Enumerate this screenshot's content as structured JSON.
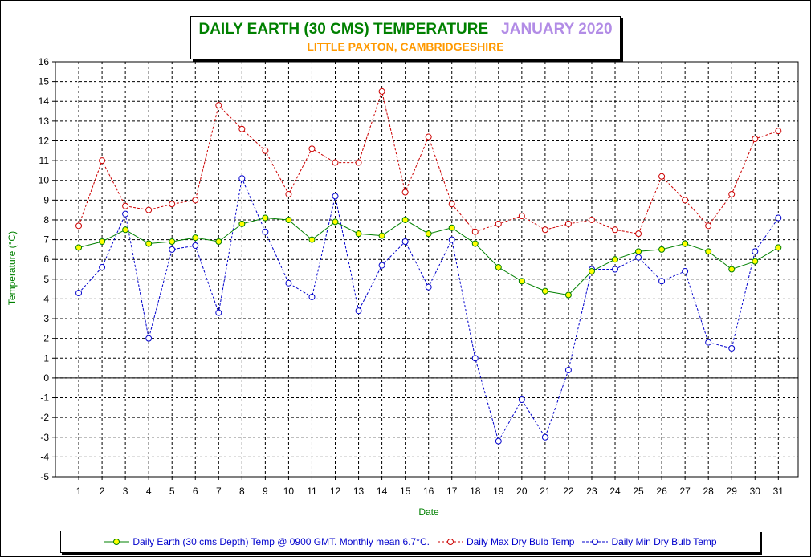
{
  "chart_data": {
    "type": "line",
    "title": "DAILY EARTH (30 CMS) TEMPERATURE",
    "title_period": "JANUARY 2020",
    "subtitle": "LITTLE PAXTON, CAMBRIDGESHIRE",
    "xlabel": "Date",
    "ylabel": "Temperature (°C)",
    "x": [
      1,
      2,
      3,
      4,
      5,
      6,
      7,
      8,
      9,
      10,
      11,
      12,
      13,
      14,
      15,
      16,
      17,
      18,
      19,
      20,
      21,
      22,
      23,
      24,
      25,
      26,
      27,
      28,
      29,
      30,
      31
    ],
    "ylim": [
      -5,
      16
    ],
    "yticks": [
      -5,
      -4,
      -3,
      -2,
      -1,
      0,
      1,
      2,
      3,
      4,
      5,
      6,
      7,
      8,
      9,
      10,
      11,
      12,
      13,
      14,
      15,
      16
    ],
    "grid": true,
    "legend_position": "bottom",
    "series": [
      {
        "name": "Daily Earth (30 cms Depth) Temp @ 0900 GMT. Monthly mean 6.7°C.",
        "color": "#008000",
        "marker_color": "#ffff00",
        "line_style": "solid",
        "values": [
          6.6,
          6.9,
          7.5,
          6.8,
          6.9,
          7.1,
          6.9,
          7.8,
          8.1,
          8.0,
          7.0,
          7.9,
          7.3,
          7.2,
          8.0,
          7.3,
          7.6,
          6.8,
          5.6,
          4.9,
          4.4,
          4.2,
          5.4,
          6.0,
          6.4,
          6.5,
          6.8,
          6.4,
          5.5,
          5.9,
          6.6
        ]
      },
      {
        "name": "Daily Max Dry Bulb Temp",
        "color": "#cc0000",
        "line_style": "dashed",
        "values": [
          7.7,
          11.0,
          8.7,
          8.5,
          8.8,
          9.0,
          13.8,
          12.6,
          11.5,
          9.3,
          11.6,
          10.9,
          10.9,
          14.5,
          9.4,
          12.2,
          8.8,
          7.4,
          7.8,
          8.2,
          7.5,
          7.8,
          8.0,
          7.5,
          7.3,
          10.2,
          9.0,
          7.7,
          9.3,
          12.1,
          12.5
        ]
      },
      {
        "name": "Daily Min Dry Bulb Temp",
        "color": "#0000cc",
        "line_style": "dashed",
        "values": [
          4.3,
          5.6,
          8.3,
          2.0,
          6.5,
          6.7,
          3.3,
          10.1,
          7.4,
          4.8,
          4.1,
          9.2,
          3.4,
          5.7,
          6.9,
          4.6,
          7.0,
          1.0,
          -3.2,
          -1.1,
          -3.0,
          0.4,
          5.5,
          5.5,
          6.1,
          4.9,
          5.4,
          1.8,
          1.5,
          6.4,
          8.1
        ]
      }
    ]
  }
}
